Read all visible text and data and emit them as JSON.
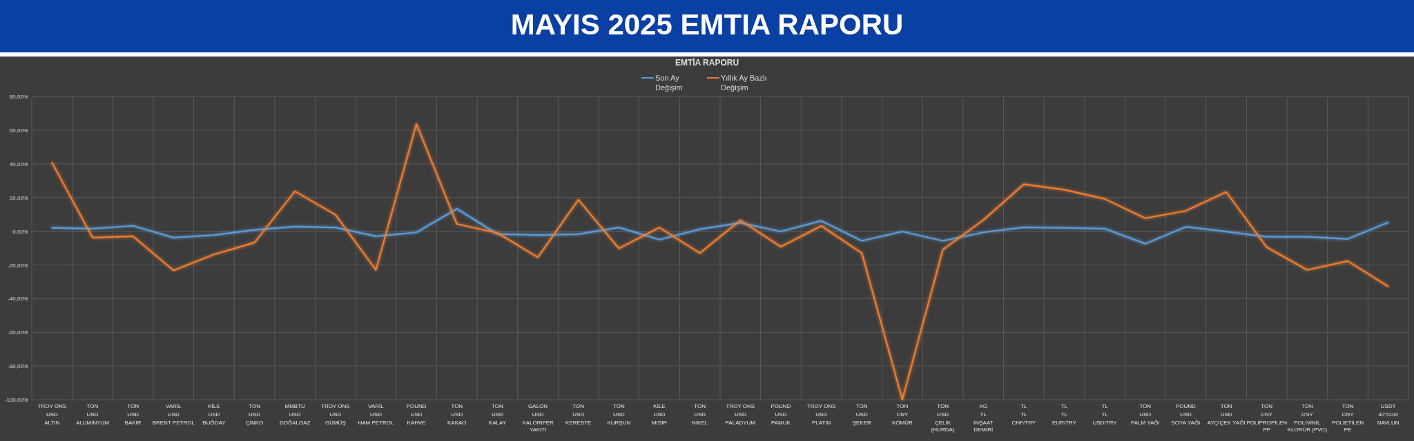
{
  "chart_data": {
    "type": "line",
    "title": "MAYIS 2025 EMTIA RAPORU",
    "subtitle": "EMTİA RAPORU",
    "categories": [
      "TROY ONS\nUSD\nALTIN",
      "TON\nUSD\nALUMİNYUM",
      "TON\nUSD\nBAKIR",
      "VARİL\nUSD\nBRENT PETROL",
      "KİLE\nUSD\nBUĞDAY",
      "TON\nUSD\nÇİNKO",
      "MMBTU\nUSD\nDOĞALGAZ",
      "TROY ONS\nUSD\nGÜMÜŞ",
      "VARİL\nUSD\nHAM PETROL",
      "POUND\nUSD\nKAHVE",
      "TON\nUSD\nKAKAO",
      "TON\nUSD\nKALAY",
      "GALON\nUSD\nKALORİFER YAKITI",
      "TON\nUSD\nKERESTE",
      "TON\nUSD\nKURŞUN",
      "KİLE\nUSD\nMISIR",
      "TON\nUSD\nNİKEL",
      "TROY ONS\nUSD\nPALADYUM",
      "POUND\nUSD\nPAMUK",
      "TROY ONS\nUSD\nPLATİN",
      "TON\nUSD\nŞEKER",
      "TON\nCNY\nKÖMÜR",
      "TON\nUSD\nÇELİK (HURDA)",
      "KG\nTL\nİNŞAAT DEMİRİ",
      "TL\nTL\nCHF/TRY",
      "TL\nTL\nEUR/TRY",
      "TL\nTL\nUSD/TRY",
      "TON\nUSD\nPALM YAĞI",
      "POUND\nUSD\nSOYA YAĞI",
      "TON\nUSD\nAYÇİÇEK YAĞI",
      "TON\nCNY\nPOLİPROPİLEN PP",
      "TON\nCNY\nPOLİVİNİL KLORÜR (PVC)",
      "TON\nCNY\nPOLİETİLEN PE",
      "USDT\n40\"Cont\nNAVLUN"
    ],
    "series": [
      {
        "name": "Son Ay Değişim",
        "color": "#5b9bd5",
        "values": [
          2,
          1.5,
          3.2,
          -3.8,
          -2.3,
          0.8,
          2.7,
          2.2,
          -3,
          -0.7,
          13.3,
          -1.7,
          -2.3,
          -1.8,
          2.2,
          -5,
          1.2,
          5,
          -0.2,
          6.2,
          -5.7,
          -0.2,
          -5.7,
          -0.7,
          2.3,
          2,
          1.5,
          -7.4,
          2.6,
          -0.2,
          -3.3,
          -3.3,
          -4.6,
          5.2
        ]
      },
      {
        "name": "Yıllık Ay Bazlı Değişim",
        "color": "#ed7d31",
        "values": [
          40.8,
          -3.8,
          -3,
          -23.3,
          -13.8,
          -6.8,
          23.7,
          9.8,
          -23,
          63.7,
          4.3,
          -1,
          -15.5,
          18.7,
          -10.2,
          2.2,
          -13,
          6.5,
          -9.2,
          3.2,
          -13,
          -100,
          -11,
          6.6,
          27.9,
          24.6,
          19.2,
          7.7,
          12.1,
          23.3,
          -9.5,
          -23,
          -17.7,
          -32.8
        ]
      }
    ],
    "ylim": [
      -100,
      80
    ],
    "yticks": [
      {
        "value": 80,
        "label": "80,00%"
      },
      {
        "value": 60,
        "label": "60,00%"
      },
      {
        "value": 40,
        "label": "40,00%"
      },
      {
        "value": 20,
        "label": "20,00%"
      },
      {
        "value": 0,
        "label": "0,00%"
      },
      {
        "value": -20,
        "label": "-20,00%"
      },
      {
        "value": -40,
        "label": "-40,00%"
      },
      {
        "value": -60,
        "label": "-60,00%"
      },
      {
        "value": -80,
        "label": "-80,00%"
      },
      {
        "value": -100,
        "label": "-100,00%"
      }
    ],
    "grid": true,
    "legend": "top",
    "marker": "none",
    "line_style": "solid"
  }
}
